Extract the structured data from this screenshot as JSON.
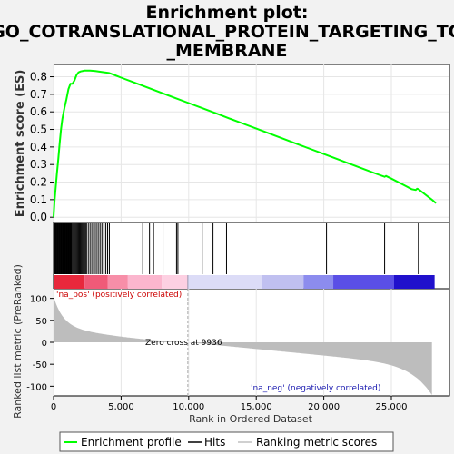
{
  "chart_data": {
    "type": "line",
    "title_lines": [
      "Enrichment plot:",
      "GO_COTRANSLATIONAL_PROTEIN_TARGETING_TO",
      "_MEMBRANE"
    ],
    "ylabel_top": "Enrichment score (ES)",
    "ylabel_bottom": "Ranked list metric (PreRanked)",
    "xlabel": "Rank in Ordered Dataset",
    "x_ticks": [
      0,
      5000,
      10000,
      15000,
      20000,
      25000
    ],
    "x_tick_labels": [
      "0",
      "5,000",
      "10,000",
      "15,000",
      "20,000",
      "25,000"
    ],
    "x_range": [
      0,
      29300
    ],
    "es_ticks": [
      0.0,
      0.1,
      0.2,
      0.3,
      0.4,
      0.5,
      0.6,
      0.7,
      0.8
    ],
    "es_tick_labels": [
      "0.0",
      "0.1",
      "0.2",
      "0.3",
      "0.4",
      "0.5",
      "0.6",
      "0.7",
      "0.8"
    ],
    "es_range": [
      -0.03,
      0.87
    ],
    "metric_ticks": [
      100,
      50,
      0,
      -50,
      -100
    ],
    "metric_tick_labels": [
      "100",
      "50",
      "0",
      "-50",
      "-100"
    ],
    "metric_range": [
      -122,
      122
    ],
    "zero_cross": 9936,
    "zero_cross_label": "Zero cross at 9936",
    "pos_label": "'na_pos' (positively correlated)",
    "neg_label": "'na_neg' (negatively correlated)",
    "n_genes": 28000,
    "series": [
      {
        "name": "Enrichment profile",
        "color": "#00ff00",
        "points": [
          [
            0,
            0.0
          ],
          [
            60,
            0.08
          ],
          [
            150,
            0.16
          ],
          [
            250,
            0.25
          ],
          [
            350,
            0.33
          ],
          [
            450,
            0.42
          ],
          [
            550,
            0.5
          ],
          [
            650,
            0.56
          ],
          [
            800,
            0.62
          ],
          [
            950,
            0.67
          ],
          [
            1100,
            0.73
          ],
          [
            1250,
            0.76
          ],
          [
            1400,
            0.76
          ],
          [
            1550,
            0.78
          ],
          [
            1700,
            0.81
          ],
          [
            1850,
            0.825
          ],
          [
            2000,
            0.83
          ],
          [
            2300,
            0.835
          ],
          [
            2700,
            0.835
          ],
          [
            3100,
            0.832
          ],
          [
            3500,
            0.828
          ],
          [
            3800,
            0.825
          ],
          [
            4100,
            0.822
          ],
          [
            4500,
            0.81
          ],
          [
            5000,
            0.795
          ],
          [
            6000,
            0.766
          ],
          [
            7000,
            0.737
          ],
          [
            8000,
            0.708
          ],
          [
            9000,
            0.679
          ],
          [
            10000,
            0.65
          ],
          [
            11000,
            0.621
          ],
          [
            12000,
            0.592
          ],
          [
            13000,
            0.563
          ],
          [
            14000,
            0.534
          ],
          [
            15000,
            0.505
          ],
          [
            16000,
            0.476
          ],
          [
            17000,
            0.447
          ],
          [
            18000,
            0.418
          ],
          [
            19000,
            0.389
          ],
          [
            20000,
            0.36
          ],
          [
            21000,
            0.331
          ],
          [
            22000,
            0.302
          ],
          [
            23000,
            0.273
          ],
          [
            24000,
            0.244
          ],
          [
            24500,
            0.23
          ],
          [
            24600,
            0.235
          ],
          [
            25000,
            0.22
          ],
          [
            26000,
            0.18
          ],
          [
            26500,
            0.16
          ],
          [
            26800,
            0.155
          ],
          [
            26900,
            0.162
          ],
          [
            27000,
            0.16
          ],
          [
            27500,
            0.13
          ],
          [
            28000,
            0.1
          ],
          [
            28300,
            0.08
          ]
        ]
      }
    ],
    "hits_dense_range": [
      0,
      4200
    ],
    "hits_sparse": [
      6600,
      7100,
      7400,
      8100,
      9100,
      9200,
      11000,
      11800,
      12800,
      20200,
      24500,
      27000
    ],
    "color_bar": [
      {
        "from": 0,
        "to": 2300,
        "color": "#e8283c"
      },
      {
        "from": 2300,
        "to": 4000,
        "color": "#f05a78"
      },
      {
        "from": 4000,
        "to": 5500,
        "color": "#f78ea8"
      },
      {
        "from": 5500,
        "to": 8000,
        "color": "#fbb6ce"
      },
      {
        "from": 8000,
        "to": 9936,
        "color": "#fdd0e2"
      },
      {
        "from": 9936,
        "to": 15400,
        "color": "#dcdcf7"
      },
      {
        "from": 15400,
        "to": 18500,
        "color": "#c0c0f0"
      },
      {
        "from": 18500,
        "to": 20700,
        "color": "#8c8cee"
      },
      {
        "from": 20700,
        "to": 25200,
        "color": "#5a4fe6"
      },
      {
        "from": 25200,
        "to": 28200,
        "color": "#2010cc"
      }
    ],
    "metric_shape": {
      "max": 90,
      "pos_decay": 700,
      "pos_floor": 40,
      "min": -120
    }
  },
  "legend": {
    "items": [
      {
        "label": "Enrichment profile",
        "color": "#00ff00"
      },
      {
        "label": "Hits",
        "color": "#000000"
      },
      {
        "label": "Ranking metric scores",
        "color": "#c0c0c0"
      }
    ]
  }
}
